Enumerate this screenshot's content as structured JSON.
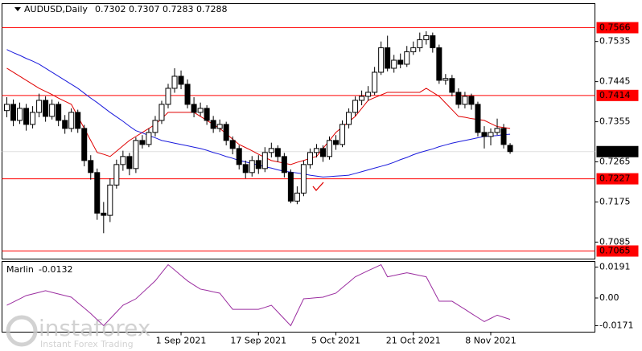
{
  "chart_data": {
    "type": "candlestick",
    "symbol": "AUDUSD,Daily",
    "categories": [
      null,
      null,
      null,
      null,
      null,
      null,
      null,
      null,
      null,
      null,
      null,
      null,
      null,
      null,
      null,
      null,
      null,
      null,
      null,
      null,
      null,
      null,
      null,
      null,
      null,
      null,
      null,
      "1 Sep 2021",
      null,
      null,
      null,
      null,
      null,
      null,
      null,
      null,
      null,
      null,
      null,
      "17 Sep 2021",
      null,
      null,
      null,
      null,
      null,
      null,
      null,
      null,
      null,
      null,
      null,
      "5 Oct 2021",
      null,
      null,
      null,
      null,
      null,
      null,
      null,
      null,
      null,
      null,
      null,
      "21 Oct 2021",
      null,
      null,
      null,
      null,
      null,
      null,
      null,
      null,
      null,
      null,
      null,
      "8 Nov 2021",
      null,
      null,
      null
    ],
    "open": [
      0.738,
      0.7394,
      0.7358,
      0.7385,
      0.7349,
      0.7376,
      0.7403,
      0.7367,
      0.7394,
      0.7358,
      0.734,
      0.7376,
      0.734,
      0.7268,
      0.7241,
      0.715,
      0.7145,
      0.7213,
      0.7259,
      0.7277,
      0.725,
      0.7313,
      0.7304,
      0.7331,
      0.7358,
      0.7394,
      0.743,
      0.7457,
      0.7439,
      0.7394,
      0.7376,
      0.7385,
      0.7358,
      0.734,
      0.7349,
      0.7313,
      0.7295,
      0.7259,
      0.7241,
      0.7268,
      0.725,
      0.7286,
      0.7295,
      0.7277,
      0.7241,
      0.7177,
      0.7195,
      0.7259,
      0.7286,
      0.7295,
      0.7277,
      0.7313,
      0.7304,
      0.7349,
      0.7376,
      0.7403,
      0.7412,
      0.7421,
      0.7466,
      0.7521,
      0.7475,
      0.7493,
      0.7484,
      0.7512,
      0.7521,
      0.7539,
      0.7548,
      0.7521,
      0.7448,
      0.7452,
      0.7421,
      0.7394,
      0.7412,
      0.7394,
      0.7331,
      0.7322,
      0.7331,
      0.734,
      0.7302
    ],
    "high": [
      0.741,
      0.7405,
      0.7398,
      0.7395,
      0.739,
      0.7418,
      0.7412,
      0.7405,
      0.74,
      0.737,
      0.7385,
      0.7382,
      0.7348,
      0.728,
      0.725,
      0.7175,
      0.7228,
      0.727,
      0.729,
      0.7285,
      0.732,
      0.7325,
      0.734,
      0.7368,
      0.7402,
      0.744,
      0.7475,
      0.747,
      0.745,
      0.741,
      0.7398,
      0.7392,
      0.7368,
      0.736,
      0.7355,
      0.7322,
      0.7302,
      0.7268,
      0.7278,
      0.728,
      0.7298,
      0.7308,
      0.7302,
      0.7285,
      0.7248,
      0.721,
      0.7268,
      0.7295,
      0.7305,
      0.7302,
      0.7322,
      0.7325,
      0.7358,
      0.7385,
      0.7412,
      0.7425,
      0.7435,
      0.7478,
      0.7535,
      0.7548,
      0.7505,
      0.7508,
      0.7525,
      0.7535,
      0.7555,
      0.7558,
      0.7555,
      0.7528,
      0.7462,
      0.746,
      0.743,
      0.7422,
      0.7418,
      0.74,
      0.7345,
      0.734,
      0.7362,
      0.735,
      0.7307
    ],
    "low": [
      0.7365,
      0.7345,
      0.735,
      0.7335,
      0.734,
      0.7365,
      0.7355,
      0.736,
      0.7345,
      0.7328,
      0.7332,
      0.733,
      0.7255,
      0.7225,
      0.7135,
      0.7105,
      0.713,
      0.7205,
      0.7245,
      0.7235,
      0.724,
      0.7295,
      0.7298,
      0.7322,
      0.735,
      0.7385,
      0.742,
      0.7428,
      0.7385,
      0.7365,
      0.7368,
      0.7348,
      0.733,
      0.7332,
      0.7302,
      0.7282,
      0.7248,
      0.7228,
      0.7232,
      0.7238,
      0.7242,
      0.7275,
      0.7265,
      0.723,
      0.7172,
      0.717,
      0.7188,
      0.725,
      0.7275,
      0.7265,
      0.727,
      0.7292,
      0.7298,
      0.734,
      0.7368,
      0.7392,
      0.7402,
      0.7415,
      0.746,
      0.7468,
      0.7465,
      0.7475,
      0.7478,
      0.7505,
      0.7512,
      0.7528,
      0.751,
      0.744,
      0.7438,
      0.7412,
      0.7385,
      0.7385,
      0.7382,
      0.7322,
      0.7295,
      0.7302,
      0.7325,
      0.7295,
      0.7283
    ],
    "close": [
      0.7394,
      0.7358,
      0.7385,
      0.7349,
      0.7376,
      0.7403,
      0.7367,
      0.7394,
      0.7358,
      0.734,
      0.7376,
      0.734,
      0.7268,
      0.7241,
      0.715,
      0.7145,
      0.7213,
      0.7259,
      0.7277,
      0.725,
      0.7313,
      0.7304,
      0.7331,
      0.7358,
      0.7394,
      0.743,
      0.7457,
      0.7439,
      0.7394,
      0.7376,
      0.7385,
      0.7358,
      0.734,
      0.7349,
      0.7313,
      0.7295,
      0.7259,
      0.7241,
      0.7268,
      0.725,
      0.7286,
      0.7295,
      0.7277,
      0.7241,
      0.7177,
      0.7195,
      0.7259,
      0.7286,
      0.7295,
      0.7277,
      0.7313,
      0.7304,
      0.7349,
      0.7376,
      0.7403,
      0.7412,
      0.7421,
      0.7466,
      0.7521,
      0.7475,
      0.7493,
      0.7484,
      0.7512,
      0.7521,
      0.7539,
      0.7548,
      0.7521,
      0.7448,
      0.7452,
      0.7421,
      0.7394,
      0.7412,
      0.7394,
      0.7331,
      0.7322,
      0.7331,
      0.734,
      0.7304,
      0.7288
    ],
    "ylim": [
      0.7047,
      0.762
    ],
    "yticks": [
      0.7535,
      0.7445,
      0.7355,
      0.7265,
      0.7175,
      0.7085
    ],
    "levels": {
      "color": "#ff0000",
      "values": [
        0.7566,
        0.7414,
        0.7227,
        0.7065
      ]
    },
    "lines": [
      {
        "color": "#e00000",
        "values": [
          0.7475,
          0.7466,
          0.7457,
          0.7448,
          0.7439,
          0.743,
          0.7423,
          0.7416,
          0.7408,
          0.7401,
          0.7394,
          0.7367,
          0.734,
          0.7313,
          0.7286,
          0.7282,
          0.7277,
          0.7289,
          0.7301,
          0.7313,
          0.7322,
          0.7331,
          0.734,
          0.7349,
          0.7362,
          0.7376,
          0.7376,
          0.7376,
          0.7376,
          0.7376,
          0.7367,
          0.7358,
          0.7349,
          0.734,
          0.7328,
          0.7316,
          0.7304,
          0.7297,
          0.729,
          0.7282,
          0.7275,
          0.7268,
          0.7265,
          0.7262,
          0.7259,
          0.7264,
          0.7268,
          0.7273,
          0.7277,
          0.7295,
          0.7313,
          0.7331,
          0.7343,
          0.7355,
          0.7367,
          0.7385,
          0.7403,
          0.7409,
          0.7415,
          0.7421,
          0.7421,
          0.7421,
          0.7421,
          0.7421,
          0.7421,
          0.743,
          0.7421,
          0.7412,
          0.7397,
          0.7382,
          0.7367,
          0.7365,
          0.7362,
          0.736,
          0.7358,
          0.7351,
          0.7344,
          0.7342,
          0.734
        ]
      },
      {
        "color": "#1a1adc",
        "values": [
          0.7517,
          0.751,
          0.7504,
          0.7497,
          0.7491,
          0.7484,
          0.7475,
          0.7466,
          0.7457,
          0.7448,
          0.7439,
          0.743,
          0.7419,
          0.7408,
          0.7398,
          0.7387,
          0.7376,
          0.7366,
          0.7356,
          0.7345,
          0.7335,
          0.733,
          0.7324,
          0.7319,
          0.7313,
          0.731,
          0.7307,
          0.7304,
          0.7301,
          0.7298,
          0.7295,
          0.7291,
          0.7286,
          0.7282,
          0.7277,
          0.7273,
          0.7268,
          0.7265,
          0.7261,
          0.7258,
          0.7254,
          0.7251,
          0.7247,
          0.7244,
          0.7242,
          0.724,
          0.7238,
          0.7235,
          0.7233,
          0.7231,
          0.7232,
          0.7233,
          0.7234,
          0.7235,
          0.7239,
          0.7243,
          0.7247,
          0.7251,
          0.7255,
          0.7259,
          0.7264,
          0.727,
          0.7275,
          0.7281,
          0.7286,
          0.729,
          0.7294,
          0.7299,
          0.7303,
          0.7307,
          0.731,
          0.7313,
          0.7316,
          0.7319,
          0.7322,
          0.7323,
          0.7324,
          0.7326,
          0.7327
        ]
      }
    ],
    "indicator": {
      "title": "Marlin",
      "color": "#9b2ea0",
      "ylim": [
        -0.0211,
        0.0226
      ],
      "yticks": [
        0.0191,
        {
          "value": 0,
          "label": "0.00"
        },
        -0.0171
      ],
      "values": [
        -0.0045,
        -0.0025,
        -0.0005,
        0.0015,
        0.0025,
        0.0035,
        0.0045,
        0.0035,
        0.0025,
        0.0015,
        0.0005,
        -0.0029,
        -0.0062,
        -0.0096,
        -0.0134,
        -0.0171,
        -0.0129,
        -0.0087,
        -0.0045,
        -0.0025,
        -0.0005,
        0.0032,
        0.0069,
        0.0106,
        0.0156,
        0.0206,
        0.0173,
        0.0139,
        0.0106,
        0.008,
        0.0055,
        0.0047,
        0.0038,
        0.003,
        -0.002,
        -0.007,
        -0.007,
        -0.007,
        -0.007,
        -0.007,
        -0.0058,
        -0.0045,
        -0.0087,
        -0.0129,
        -0.0171,
        -0.0088,
        -0.0005,
        -0.0002,
        0.0002,
        0.0005,
        0.0018,
        0.003,
        0.0064,
        0.0097,
        0.0131,
        0.015,
        0.0169,
        0.0187,
        0.0206,
        0.0131,
        0.0139,
        0.0148,
        0.0156,
        0.0148,
        0.0139,
        0.0131,
        0.0056,
        -0.002,
        -0.002,
        -0.002,
        -0.0045,
        -0.007,
        -0.0096,
        -0.0121,
        -0.0146,
        -0.0126,
        -0.0106,
        -0.0119,
        -0.0132
      ]
    }
  },
  "watermark": {
    "brand": "instaforex",
    "tagline": "Instant Forex Trading"
  }
}
